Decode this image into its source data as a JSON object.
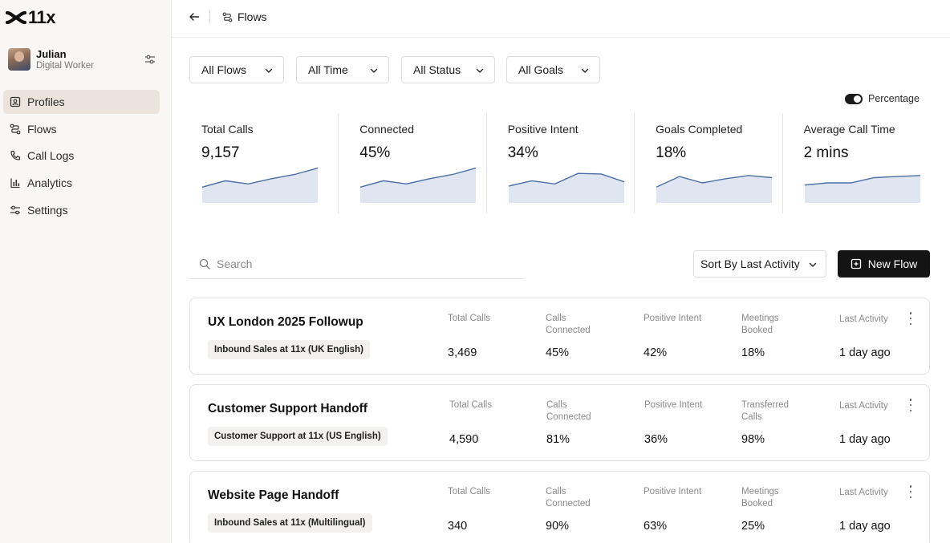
{
  "app": {
    "logo_text": "11x"
  },
  "user": {
    "name": "Julian",
    "role": "Digital Worker"
  },
  "sidebar": {
    "items": [
      {
        "label": "Profiles",
        "icon": "profile-card-icon",
        "active": true
      },
      {
        "label": "Flows",
        "icon": "flow-icon",
        "active": false
      },
      {
        "label": "Call Logs",
        "icon": "phone-icon",
        "active": false
      },
      {
        "label": "Analytics",
        "icon": "bar-chart-icon",
        "active": false
      },
      {
        "label": "Settings",
        "icon": "sliders-icon",
        "active": false
      }
    ]
  },
  "header": {
    "breadcrumb": "Flows"
  },
  "filters": [
    {
      "label": "All Flows"
    },
    {
      "label": "All Time"
    },
    {
      "label": "All Status"
    },
    {
      "label": "All Goals"
    }
  ],
  "percentage_toggle": {
    "label": "Percentage",
    "on": true
  },
  "stats": [
    {
      "label": "Total Calls",
      "value": "9,157",
      "trend": [
        30,
        42,
        36,
        46,
        54,
        66
      ]
    },
    {
      "label": "Connected",
      "value": "45%",
      "trend": [
        30,
        42,
        36,
        46,
        54,
        66
      ]
    },
    {
      "label": "Positive Intent",
      "value": "34%",
      "trend": [
        32,
        42,
        36,
        56,
        55,
        40
      ]
    },
    {
      "label": "Goals Completed",
      "value": "18%",
      "trend": [
        30,
        50,
        38,
        46,
        52,
        48
      ]
    },
    {
      "label": "Average Call Time",
      "value": "2 mins",
      "trend": [
        34,
        38,
        38,
        48,
        50,
        52
      ]
    }
  ],
  "search": {
    "placeholder": "Search",
    "value": ""
  },
  "sort": {
    "label": "Sort By Last Activity"
  },
  "new_flow": {
    "label": "New Flow"
  },
  "flows": [
    {
      "title": "UX London 2025 Followup",
      "tag": "Inbound Sales at 11x (UK English)",
      "metrics": [
        {
          "label": "Total Calls",
          "value": "3,469"
        },
        {
          "label": "Calls Connected",
          "value": "45%"
        },
        {
          "label": "Positive Intent",
          "value": "42%"
        },
        {
          "label": "Meetings Booked",
          "value": "18%"
        },
        {
          "label": "Last Activity",
          "value": "1 day ago"
        }
      ]
    },
    {
      "title": "Customer Support Handoff",
      "tag": "Customer Support at 11x (US English)",
      "metrics": [
        {
          "label": "Total Calls",
          "value": "4,590"
        },
        {
          "label": "Calls Connected",
          "value": "81%"
        },
        {
          "label": "Positive Intent",
          "value": "36%"
        },
        {
          "label": "Transferred Calls",
          "value": "98%"
        },
        {
          "label": "Last Activity",
          "value": "1 day ago"
        }
      ]
    },
    {
      "title": "Website Page Handoff",
      "tag": "Inbound Sales at 11x (Multilingual)",
      "metrics": [
        {
          "label": "Total Calls",
          "value": "340"
        },
        {
          "label": "Calls Connected",
          "value": "90%"
        },
        {
          "label": "Positive Intent",
          "value": "63%"
        },
        {
          "label": "Meetings Booked",
          "value": "25%"
        },
        {
          "label": "Last Activity",
          "value": "1 day ago"
        }
      ]
    }
  ],
  "colors": {
    "accent": "#141414",
    "sidebar_active": "#ebe4dd",
    "spark_line": "#4a6fa5",
    "spark_fill": "#dfe6f1"
  }
}
